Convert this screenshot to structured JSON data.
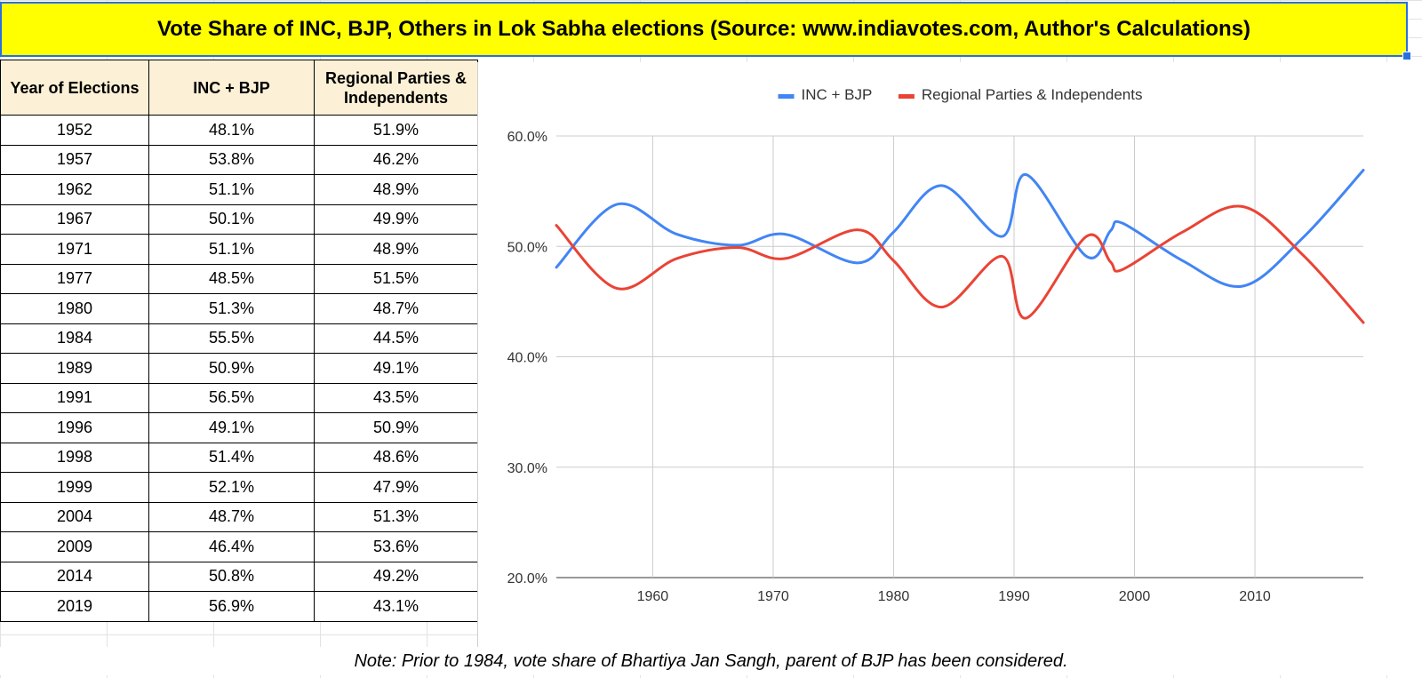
{
  "title": "Vote Share of INC, BJP, Others in Lok Sabha elections (Source: www.indiavotes.com, Author's Calculations)",
  "note": "Note: Prior to 1984, vote share of Bhartiya Jan Sangh, parent of BJP has been considered.",
  "table": {
    "headers": {
      "year": "Year of Elections",
      "inc_bjp": "INC + BJP",
      "regional": "Regional Parties & Independents"
    },
    "rows": [
      {
        "year": "1952",
        "inc_bjp": "48.1%",
        "regional": "51.9%"
      },
      {
        "year": "1957",
        "inc_bjp": "53.8%",
        "regional": "46.2%"
      },
      {
        "year": "1962",
        "inc_bjp": "51.1%",
        "regional": "48.9%"
      },
      {
        "year": "1967",
        "inc_bjp": "50.1%",
        "regional": "49.9%"
      },
      {
        "year": "1971",
        "inc_bjp": "51.1%",
        "regional": "48.9%"
      },
      {
        "year": "1977",
        "inc_bjp": "48.5%",
        "regional": "51.5%"
      },
      {
        "year": "1980",
        "inc_bjp": "51.3%",
        "regional": "48.7%"
      },
      {
        "year": "1984",
        "inc_bjp": "55.5%",
        "regional": "44.5%"
      },
      {
        "year": "1989",
        "inc_bjp": "50.9%",
        "regional": "49.1%"
      },
      {
        "year": "1991",
        "inc_bjp": "56.5%",
        "regional": "43.5%"
      },
      {
        "year": "1996",
        "inc_bjp": "49.1%",
        "regional": "50.9%"
      },
      {
        "year": "1998",
        "inc_bjp": "51.4%",
        "regional": "48.6%"
      },
      {
        "year": "1999",
        "inc_bjp": "52.1%",
        "regional": "47.9%"
      },
      {
        "year": "2004",
        "inc_bjp": "48.7%",
        "regional": "51.3%"
      },
      {
        "year": "2009",
        "inc_bjp": "46.4%",
        "regional": "53.6%"
      },
      {
        "year": "2014",
        "inc_bjp": "50.8%",
        "regional": "49.2%"
      },
      {
        "year": "2019",
        "inc_bjp": "56.9%",
        "regional": "43.1%"
      }
    ]
  },
  "chart_data": {
    "type": "line",
    "x": [
      1952,
      1957,
      1962,
      1967,
      1971,
      1977,
      1980,
      1984,
      1989,
      1991,
      1996,
      1998,
      1999,
      2004,
      2009,
      2014,
      2019
    ],
    "series": [
      {
        "name": "INC + BJP",
        "color": "#4285f4",
        "values": [
          48.1,
          53.8,
          51.1,
          50.1,
          51.1,
          48.5,
          51.3,
          55.5,
          50.9,
          56.5,
          49.1,
          51.4,
          52.1,
          48.7,
          46.4,
          50.8,
          56.9
        ]
      },
      {
        "name": "Regional Parties & Independents",
        "color": "#ea4335",
        "values": [
          51.9,
          46.2,
          48.9,
          49.9,
          48.9,
          51.5,
          48.7,
          44.5,
          49.1,
          43.5,
          50.9,
          48.6,
          47.9,
          51.3,
          53.6,
          49.2,
          43.1
        ]
      }
    ],
    "xlim": [
      1952,
      2019
    ],
    "ylim": [
      20,
      60
    ],
    "x_ticks": [
      1960,
      1970,
      1980,
      1990,
      2000,
      2010
    ],
    "x_tick_labels": [
      "1960",
      "1970",
      "1980",
      "1990",
      "2000",
      "2010"
    ],
    "y_ticks": [
      20,
      30,
      40,
      50,
      60
    ],
    "y_tick_labels": [
      "20.0%",
      "30.0%",
      "40.0%",
      "50.0%",
      "60.0%"
    ],
    "legend_position": "top",
    "grid": true,
    "title": "",
    "xlabel": "",
    "ylabel": ""
  }
}
